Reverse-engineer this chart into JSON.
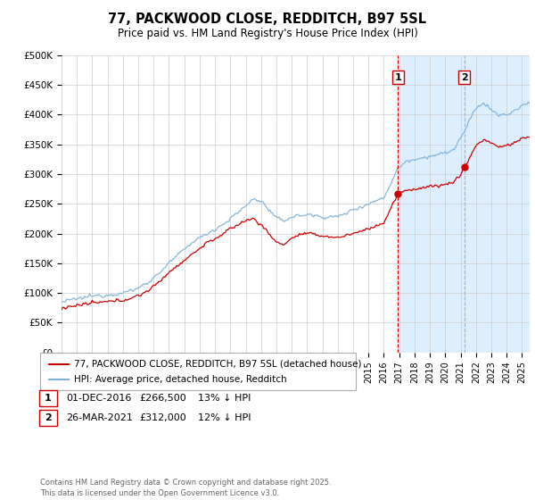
{
  "title": "77, PACKWOOD CLOSE, REDDITCH, B97 5SL",
  "subtitle": "Price paid vs. HM Land Registry's House Price Index (HPI)",
  "ylim": [
    0,
    500000
  ],
  "xlim_start": 1995,
  "xlim_end": 2025.5,
  "hpi_color": "#7bafd4",
  "price_color": "#cc0000",
  "marker1_date": 2016.92,
  "marker2_date": 2021.23,
  "marker1_price": 266500,
  "marker2_price": 312000,
  "vline1_color": "#cc0000",
  "vline2_color": "#aaaacc",
  "highlight_color": "#ddeeff",
  "legend_label1": "77, PACKWOOD CLOSE, REDDITCH, B97 5SL (detached house)",
  "legend_label2": "HPI: Average price, detached house, Redditch",
  "footer": "Contains HM Land Registry data © Crown copyright and database right 2025.\nThis data is licensed under the Open Government Licence v3.0.",
  "background_color": "#ffffff",
  "grid_color": "#cccccc"
}
